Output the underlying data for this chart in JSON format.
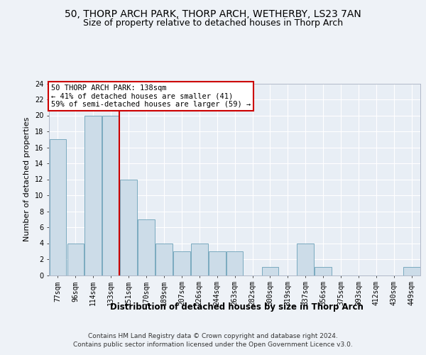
{
  "title1": "50, THORP ARCH PARK, THORP ARCH, WETHERBY, LS23 7AN",
  "title2": "Size of property relative to detached houses in Thorp Arch",
  "xlabel": "Distribution of detached houses by size in Thorp Arch",
  "ylabel": "Number of detached properties",
  "categories": [
    "77sqm",
    "96sqm",
    "114sqm",
    "133sqm",
    "151sqm",
    "170sqm",
    "189sqm",
    "207sqm",
    "226sqm",
    "244sqm",
    "263sqm",
    "282sqm",
    "300sqm",
    "319sqm",
    "337sqm",
    "356sqm",
    "375sqm",
    "393sqm",
    "412sqm",
    "430sqm",
    "449sqm"
  ],
  "values": [
    17,
    4,
    20,
    20,
    12,
    7,
    4,
    3,
    4,
    3,
    3,
    0,
    1,
    0,
    4,
    1,
    0,
    0,
    0,
    0,
    1
  ],
  "bar_color": "#ccdce8",
  "bar_edge_color": "#7aaabf",
  "subject_line_index": 3,
  "subject_line_color": "#cc0000",
  "annotation_box_color": "#cc0000",
  "annotation_line1": "50 THORP ARCH PARK: 138sqm",
  "annotation_line2": "← 41% of detached houses are smaller (41)",
  "annotation_line3": "59% of semi-detached houses are larger (59) →",
  "ylim": [
    0,
    24
  ],
  "yticks": [
    0,
    2,
    4,
    6,
    8,
    10,
    12,
    14,
    16,
    18,
    20,
    22,
    24
  ],
  "footer1": "Contains HM Land Registry data © Crown copyright and database right 2024.",
  "footer2": "Contains public sector information licensed under the Open Government Licence v3.0.",
  "bg_color": "#eef2f7",
  "plot_bg_color": "#e8eef5",
  "grid_color": "#ffffff",
  "title1_fontsize": 10,
  "title2_fontsize": 9,
  "xlabel_fontsize": 8.5,
  "ylabel_fontsize": 8,
  "tick_fontsize": 7,
  "annotation_fontsize": 7.5,
  "footer_fontsize": 6.5
}
